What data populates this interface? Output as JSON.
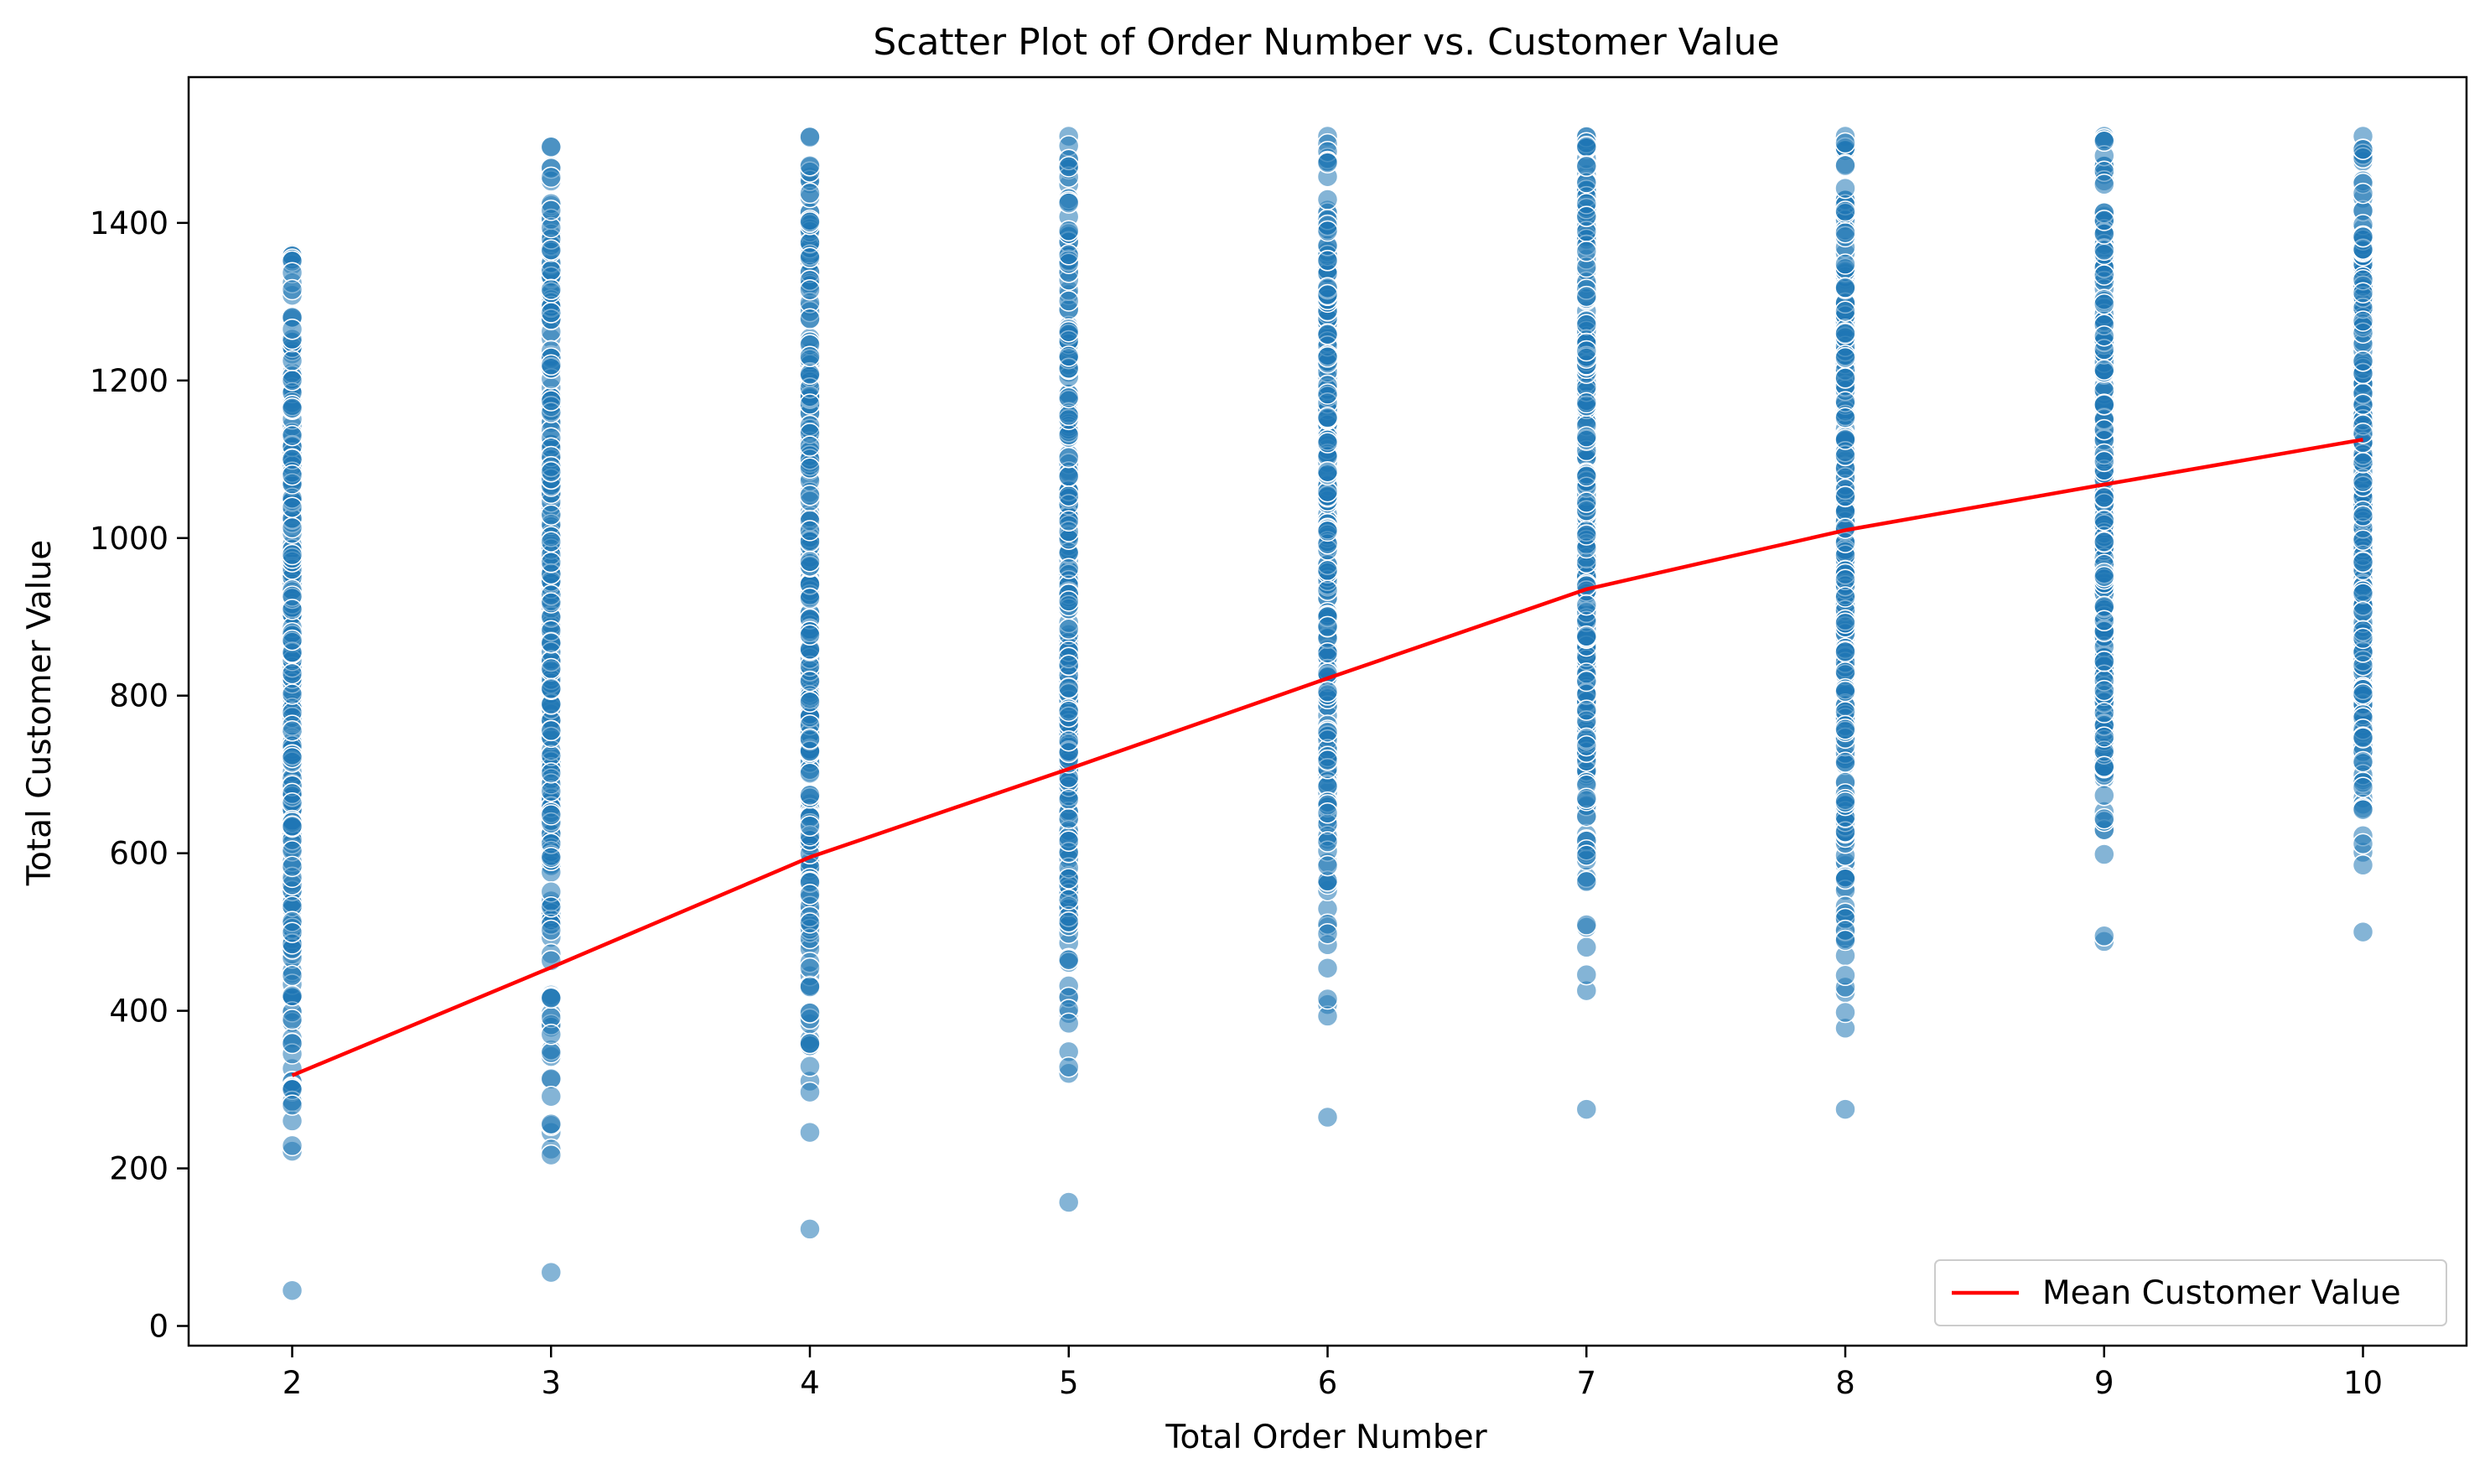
{
  "chart_data": {
    "type": "scatter",
    "title": "Scatter Plot of Order Number vs. Customer Value",
    "xlabel": "Total Order Number",
    "ylabel": "Total Customer Value",
    "xlim": [
      1.6,
      10.4
    ],
    "ylim": [
      -25,
      1585
    ],
    "xticks": [
      2,
      3,
      4,
      5,
      6,
      7,
      8,
      9,
      10
    ],
    "yticks": [
      0,
      200,
      400,
      600,
      800,
      1000,
      1200,
      1400
    ],
    "grid": false,
    "legend": {
      "position": "lower-right"
    },
    "colors": {
      "scatter": "#1f77b4",
      "line": "#ff0000",
      "axis": "#000000"
    },
    "series": [
      {
        "type": "scatter",
        "points_by_x": [
          {
            "x": 2,
            "min": 45,
            "max": 1360,
            "outliers": [
              1280,
              1265,
              1225,
              1200,
              1165,
              1130,
              1100,
              1080
            ]
          },
          {
            "x": 3,
            "min": 68,
            "max": 1497,
            "outliers": []
          },
          {
            "x": 4,
            "min": 123,
            "max": 1510,
            "outliers": []
          },
          {
            "x": 5,
            "min": 157,
            "max": 1510,
            "outliers": []
          },
          {
            "x": 6,
            "min": 265,
            "max": 1510,
            "outliers": []
          },
          {
            "x": 7,
            "min": 275,
            "max": 1510,
            "outliers": []
          },
          {
            "x": 8,
            "min": 275,
            "max": 1510,
            "outliers": [
              378,
              398,
              430,
              445
            ]
          },
          {
            "x": 9,
            "min": 488,
            "max": 1510,
            "outliers": [
              495
            ]
          },
          {
            "x": 10,
            "min": 500,
            "max": 1510,
            "outliers": [
              585,
              612
            ]
          }
        ]
      },
      {
        "type": "line",
        "name": "Mean Customer Value",
        "x": [
          2,
          3,
          4,
          5,
          6,
          7,
          8,
          9,
          10
        ],
        "y": [
          318,
          455,
          595,
          707,
          822,
          935,
          1010,
          1068,
          1125
        ]
      }
    ]
  }
}
